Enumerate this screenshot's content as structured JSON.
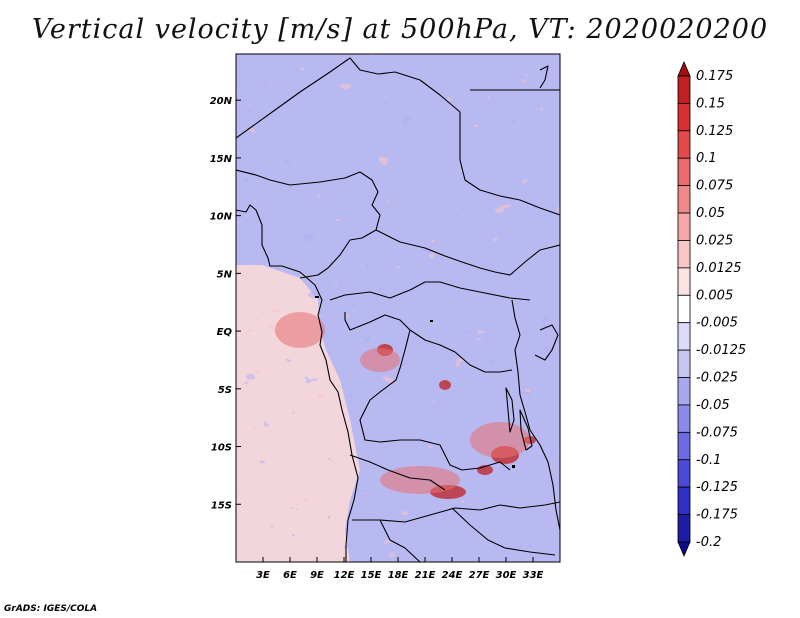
{
  "title": "Vertical velocity [m/s] at 500hPa, VT: 2020020200",
  "credit": "GrADS: IGES/COLA",
  "map": {
    "lon_range": [
      0,
      36
    ],
    "lat_range": [
      -20,
      24
    ],
    "lon_ticks": [
      {
        "lon": 3,
        "label": "3E"
      },
      {
        "lon": 6,
        "label": "6E"
      },
      {
        "lon": 9,
        "label": "9E"
      },
      {
        "lon": 12,
        "label": "12E"
      },
      {
        "lon": 15,
        "label": "15E"
      },
      {
        "lon": 18,
        "label": "18E"
      },
      {
        "lon": 21,
        "label": "21E"
      },
      {
        "lon": 24,
        "label": "24E"
      },
      {
        "lon": 27,
        "label": "27E"
      },
      {
        "lon": 30,
        "label": "30E"
      },
      {
        "lon": 33,
        "label": "33E"
      }
    ],
    "lat_ticks": [
      {
        "lat": 20,
        "label": "20N"
      },
      {
        "lat": 15,
        "label": "15N"
      },
      {
        "lat": 10,
        "label": "10N"
      },
      {
        "lat": 5,
        "label": "5N"
      },
      {
        "lat": 0,
        "label": "EQ"
      },
      {
        "lat": -5,
        "label": "5S"
      },
      {
        "lat": -10,
        "label": "10S"
      },
      {
        "lat": -15,
        "label": "15S"
      }
    ]
  },
  "colorbar": {
    "levels": [
      "0.175",
      "0.15",
      "0.125",
      "0.1",
      "0.075",
      "0.05",
      "0.025",
      "0.0125",
      "0.005",
      "-0.005",
      "-0.0125",
      "-0.025",
      "-0.05",
      "-0.075",
      "-0.1",
      "-0.125",
      "-0.175",
      "-0.2"
    ],
    "colors": [
      "#a01010",
      "#c02020",
      "#d83030",
      "#e24a4a",
      "#ea6c6c",
      "#f08a8a",
      "#f5a8a8",
      "#f9c6c6",
      "#fde2e2",
      "#ffffff",
      "#dcdcfa",
      "#c6c6f5",
      "#a8a8f0",
      "#8a8aea",
      "#6c6ce2",
      "#4a4ad8",
      "#3030c4",
      "#1c1ca6",
      "#0c0c8a"
    ]
  }
}
